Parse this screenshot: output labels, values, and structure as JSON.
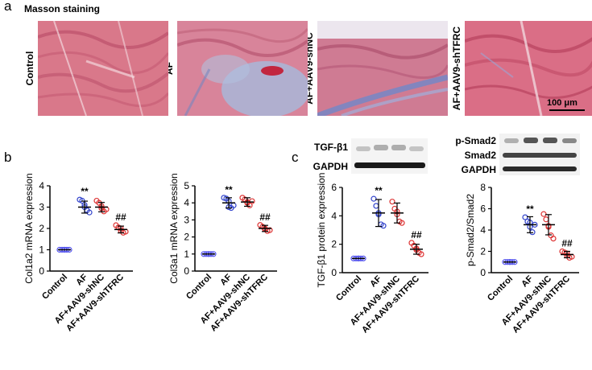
{
  "panels": {
    "a": "a",
    "b": "b",
    "c": "c"
  },
  "staining": {
    "title": "Masson staining",
    "groups": [
      "Control",
      "AF",
      "AF+AAV9-shNC",
      "AF+AAV9-shTFRC"
    ],
    "scale_bar": "100 μm"
  },
  "western_blot": {
    "tgf_labels": [
      "TGF-β1",
      "GAPDH"
    ],
    "smad_labels": [
      "p-Smad2",
      "Smad2",
      "GAPDH"
    ]
  },
  "chart_data": [
    {
      "type": "scatter",
      "ylabel": "Col1a2 mRNA expression",
      "categories": [
        "Control",
        "AF",
        "AF+AAV9-shNC",
        "AF+AAV9-shTFRC"
      ],
      "ylim": [
        0,
        4
      ],
      "yticks": [
        0,
        1,
        2,
        3,
        4
      ],
      "mean": [
        1.0,
        3.0,
        3.0,
        1.95
      ],
      "sd": [
        0.02,
        0.28,
        0.22,
        0.16
      ],
      "points": [
        [
          1,
          1,
          1,
          1,
          1,
          1
        ],
        [
          3.35,
          3.3,
          3.0,
          2.85,
          2.75,
          3.1
        ],
        [
          3.3,
          3.2,
          2.95,
          2.8,
          2.9,
          3.05
        ],
        [
          2.15,
          2.05,
          1.9,
          1.8,
          1.85,
          2.0
        ]
      ],
      "annotations": [
        "",
        "**",
        "",
        "##"
      ]
    },
    {
      "type": "scatter",
      "ylabel": "Col3a1 mRNA expression",
      "categories": [
        "Control",
        "AF",
        "AF+AAV9-shNC",
        "AF+AAV9-shTFRC"
      ],
      "ylim": [
        0,
        5
      ],
      "yticks": [
        0,
        1,
        2,
        3,
        4,
        5
      ],
      "mean": [
        1.0,
        4.0,
        4.05,
        2.5
      ],
      "sd": [
        0.02,
        0.3,
        0.25,
        0.18
      ],
      "points": [
        [
          1,
          1,
          1,
          1,
          1,
          1
        ],
        [
          4.3,
          4.25,
          3.75,
          3.7,
          3.85,
          4.1
        ],
        [
          4.3,
          4.2,
          4.0,
          3.85,
          4.1,
          4.05
        ],
        [
          2.7,
          2.6,
          2.45,
          2.35,
          2.4,
          2.5
        ]
      ],
      "annotations": [
        "",
        "**",
        "",
        "##"
      ]
    },
    {
      "type": "scatter",
      "ylabel": "TGF-β1 protein expression",
      "categories": [
        "Control",
        "AF",
        "AF+AAV9-shNC",
        "AF+AAV9-shTFRC"
      ],
      "ylim": [
        0,
        6
      ],
      "yticks": [
        0,
        2,
        4,
        6
      ],
      "mean": [
        1.0,
        4.2,
        4.2,
        1.65
      ],
      "sd": [
        0.02,
        0.95,
        0.7,
        0.35
      ],
      "points": [
        [
          1,
          1,
          1,
          1,
          1,
          1
        ],
        [
          5.2,
          4.7,
          4.1,
          3.4,
          3.3,
          4.2
        ],
        [
          5.0,
          4.5,
          4.1,
          3.6,
          3.5,
          4.3
        ],
        [
          2.1,
          1.9,
          1.6,
          1.4,
          1.3,
          1.7
        ]
      ],
      "annotations": [
        "",
        "**",
        "",
        "##"
      ]
    },
    {
      "type": "scatter",
      "ylabel": "p-Smad2/Smad2",
      "categories": [
        "Control",
        "AF",
        "AF+AAV9-shNC",
        "AF+AAV9-shTFRC"
      ],
      "ylim": [
        0,
        8
      ],
      "yticks": [
        0,
        2,
        4,
        6,
        8
      ],
      "mean": [
        1.0,
        4.5,
        4.5,
        1.7
      ],
      "sd": [
        0.02,
        0.75,
        0.95,
        0.3
      ],
      "points": [
        [
          1,
          1,
          1,
          1,
          1,
          1
        ],
        [
          5.2,
          4.8,
          4.3,
          3.8,
          4.5,
          4.7
        ],
        [
          5.5,
          5.0,
          4.3,
          3.5,
          3.2,
          4.4
        ],
        [
          2.0,
          1.9,
          1.6,
          1.4,
          1.5,
          1.8
        ]
      ],
      "annotations": [
        "",
        "**",
        "",
        "##"
      ]
    }
  ],
  "colors": {
    "control": "#5555ee",
    "af": "#3344cc",
    "shnc": "#dd3333",
    "shtfrc": "#dd3333"
  }
}
